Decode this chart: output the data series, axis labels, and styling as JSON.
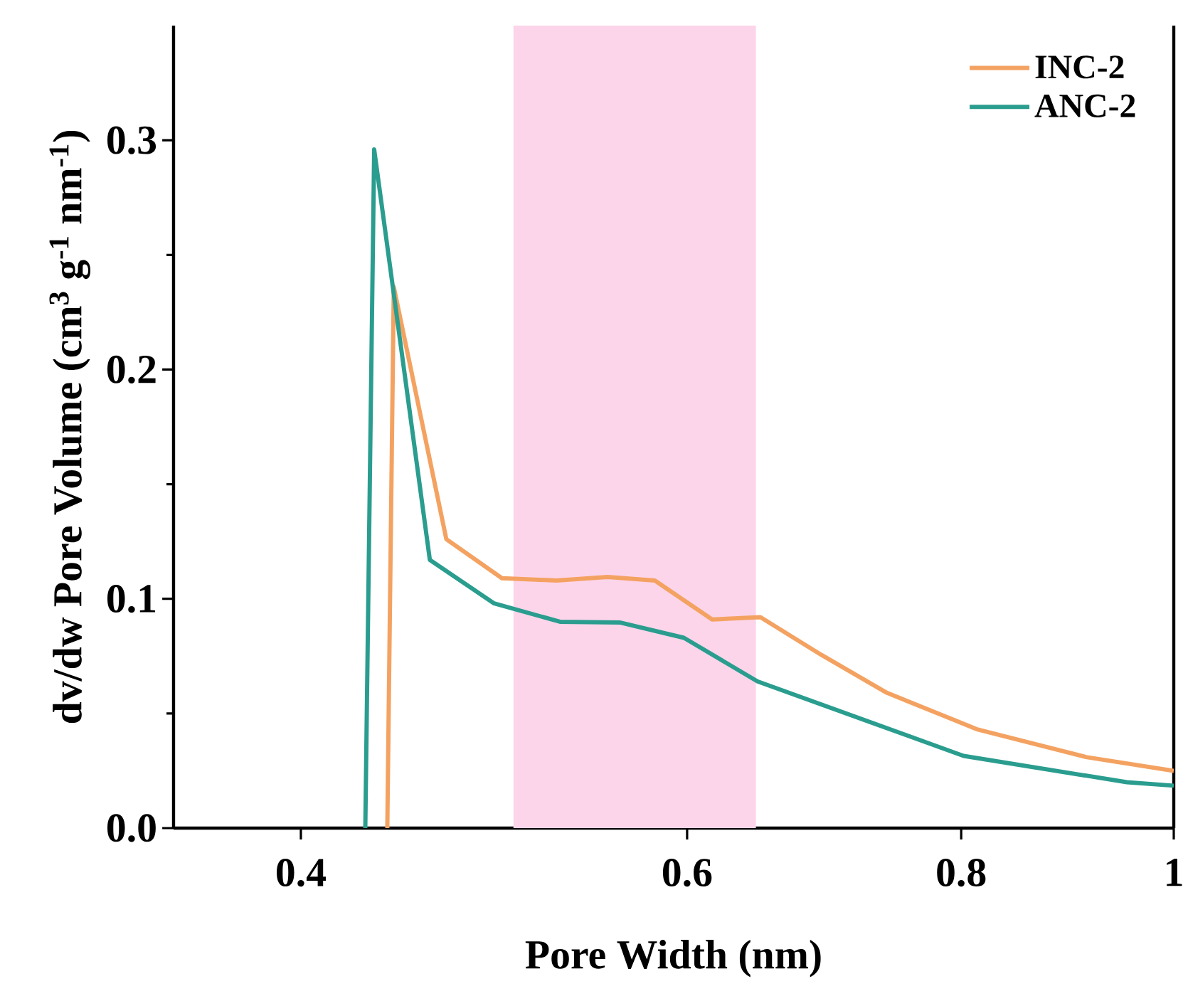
{
  "chart_data": {
    "type": "line",
    "xlabel": "Pore Width (nm)",
    "ylabel": "dv/dw Pore Volume (cm$^{3}$ g$^{-1}$ nm$^{-1}$)",
    "log": "x",
    "xlim": [
      0.35,
      1
    ],
    "ylim": [
      0,
      0.35
    ],
    "xticks": [
      0.4,
      0.6,
      0.8,
      1
    ],
    "yticks": [
      {
        "value": 0,
        "label": "0.0"
      },
      0.1,
      0.2,
      0.3
    ],
    "legend": "top right",
    "grid": false,
    "line_style": "solid",
    "bands": [
      {
        "axis": "x",
        "from": 0.5,
        "to": 0.645,
        "color": "#fcd5ea"
      }
    ],
    "series": [
      {
        "name": "INC-2",
        "color": "#f4a261",
        "x": [
          0.438,
          0.441,
          0.466,
          0.494,
          0.523,
          0.552,
          0.58,
          0.616,
          0.648,
          0.691,
          0.74,
          0.814,
          0.912,
          1.0
        ],
        "values": [
          0,
          0.236,
          0.126,
          0.109,
          0.108,
          0.1095,
          0.108,
          0.091,
          0.092,
          0.0755,
          0.059,
          0.043,
          0.031,
          0.025
        ]
      },
      {
        "name": "ANC-2",
        "color": "#2a9d8f",
        "x": [
          0.428,
          0.432,
          0.458,
          0.49,
          0.525,
          0.559,
          0.598,
          0.646,
          0.802,
          0.952,
          1.0
        ],
        "values": [
          0,
          0.296,
          0.117,
          0.098,
          0.09,
          0.0897,
          0.083,
          0.064,
          0.0315,
          0.02,
          0.0185
        ]
      }
    ]
  }
}
